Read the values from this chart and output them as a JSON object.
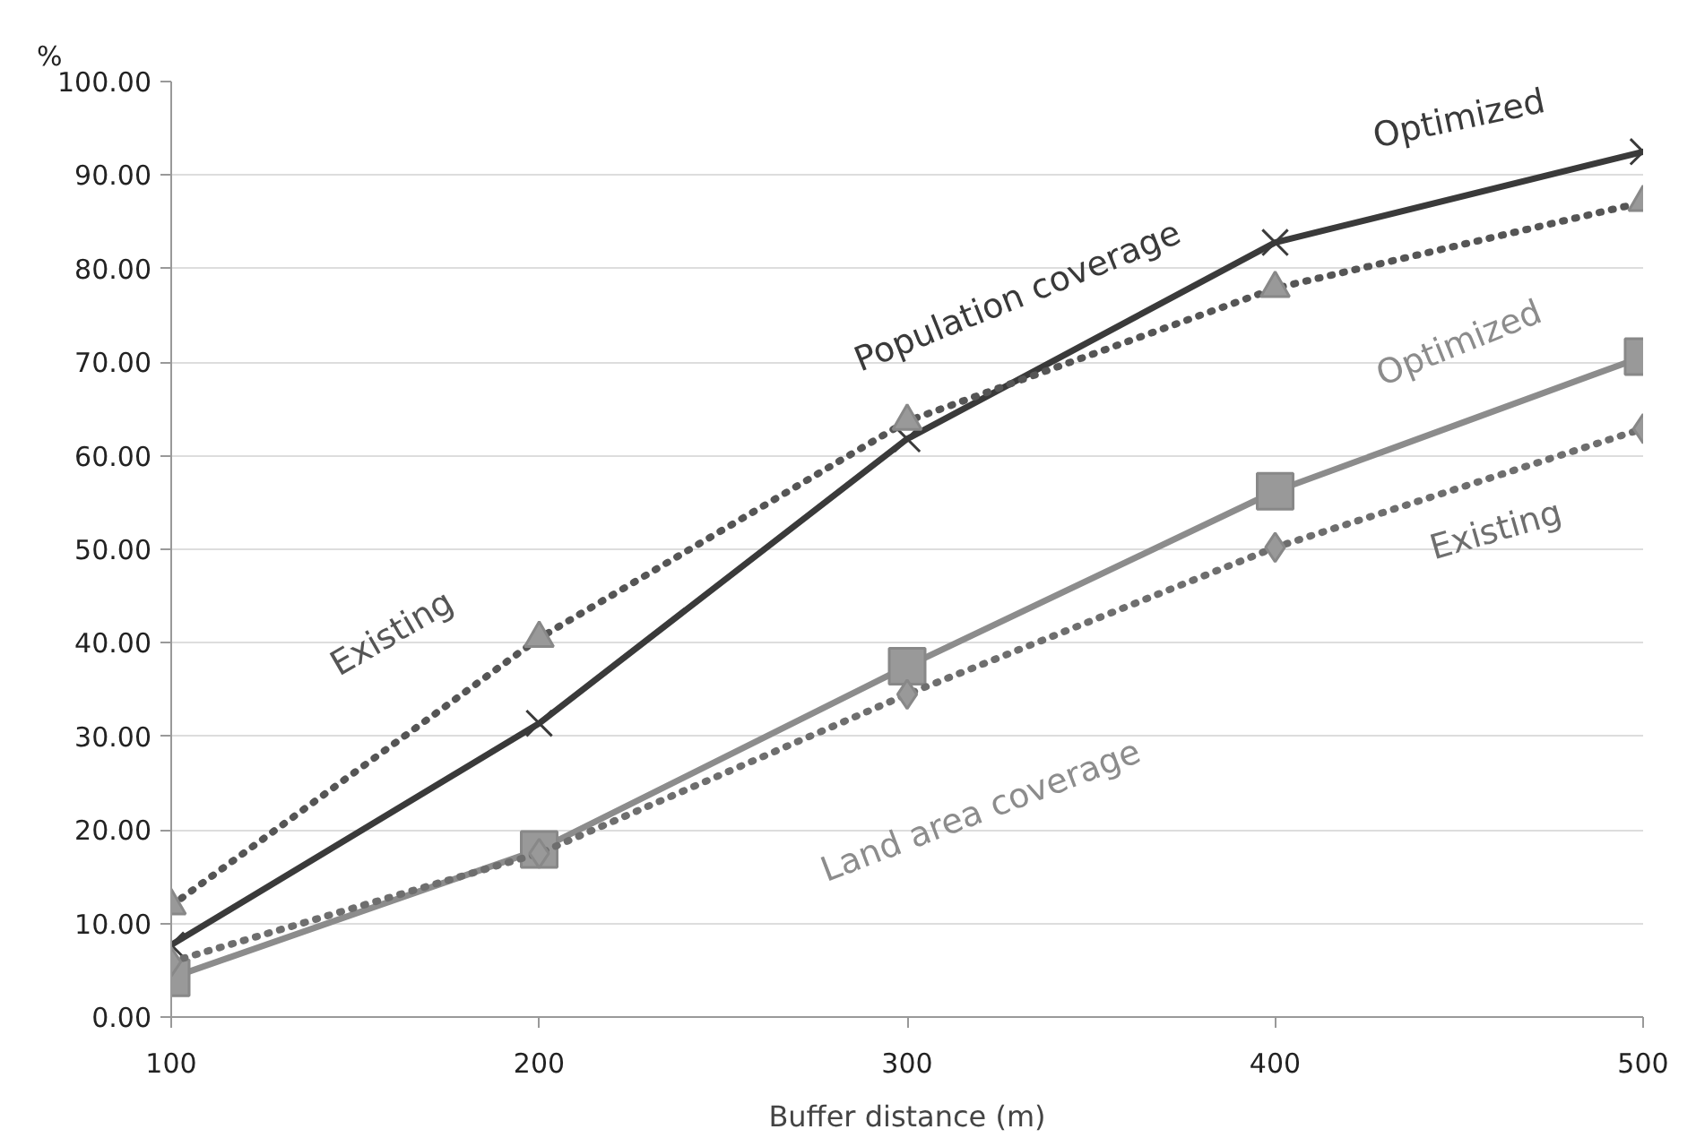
{
  "chart_data": {
    "type": "line",
    "xlabel": "Buffer distance (m)",
    "ylabel": "%",
    "x": [
      100,
      200,
      300,
      400,
      500
    ],
    "series": [
      {
        "name": "Optimized",
        "color": "#3a3a3a",
        "marker": "cross",
        "line_style": "solid",
        "values": [
          7.7,
          31.4,
          61.8,
          82.8,
          92.5
        ]
      },
      {
        "name": "Existing",
        "color": "#555555",
        "marker": "triangle",
        "line_style": "dotted",
        "values": [
          11.9,
          40.5,
          63.7,
          77.9,
          87.1
        ]
      },
      {
        "name": "Optimized",
        "color": "#8c8c8c",
        "marker": "square",
        "line_style": "solid",
        "values": [
          4.2,
          17.9,
          37.5,
          56.2,
          70.6
        ]
      },
      {
        "name": "Existing",
        "color": "#6e6e6e",
        "marker": "diamond",
        "line_style": "dotted",
        "values": [
          5.9,
          17.5,
          34.5,
          50.2,
          62.9
        ]
      }
    ],
    "annotations": [
      "Population coverage",
      "Land area coverage"
    ],
    "xlim": [
      100,
      500
    ],
    "xticks": [
      100,
      200,
      300,
      400,
      500
    ],
    "ylim": [
      0,
      100
    ],
    "yticks": [
      {
        "value": 0,
        "label": "0.00"
      },
      {
        "value": 10,
        "label": "10.00"
      },
      {
        "value": 20,
        "label": "20.00"
      },
      {
        "value": 30,
        "label": "30.00"
      },
      {
        "value": 40,
        "label": "40.00"
      },
      {
        "value": 50,
        "label": "50.00"
      },
      {
        "value": 60,
        "label": "60.00"
      },
      {
        "value": 70,
        "label": "70.00"
      },
      {
        "value": 80,
        "label": "80.00"
      },
      {
        "value": 90,
        "label": "90.00"
      },
      {
        "value": 100,
        "label": "100.00"
      }
    ],
    "grid": "y"
  }
}
